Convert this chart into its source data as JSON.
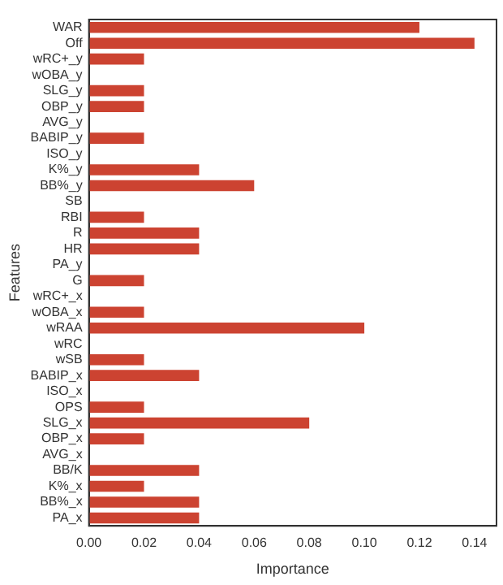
{
  "chart_data": {
    "type": "bar",
    "orientation": "horizontal",
    "xlabel": "Importance",
    "ylabel": "Features",
    "categories": [
      "WAR",
      "Off",
      "wRC+_y",
      "wOBA_y",
      "SLG_y",
      "OBP_y",
      "AVG_y",
      "BABIP_y",
      "ISO_y",
      "K%_y",
      "BB%_y",
      "SB",
      "RBI",
      "R",
      "HR",
      "PA_y",
      "G",
      "wRC+_x",
      "wOBA_x",
      "wRAA",
      "wRC",
      "wSB",
      "BABIP_x",
      "ISO_x",
      "OPS",
      "SLG_x",
      "OBP_x",
      "AVG_x",
      "BB/K",
      "K%_x",
      "BB%_x",
      "PA_x"
    ],
    "values": [
      0.12,
      0.14,
      0.02,
      0,
      0.02,
      0.02,
      0,
      0.02,
      0,
      0.04,
      0.06,
      0,
      0.02,
      0.04,
      0.04,
      0,
      0.02,
      0,
      0.02,
      0.1,
      0,
      0.02,
      0.04,
      0,
      0.02,
      0.08,
      0.02,
      0,
      0.04,
      0.02,
      0.04,
      0.04
    ],
    "color": "#cc4331",
    "xlim": [
      0,
      0.148
    ],
    "xticks": [
      {
        "value": 0,
        "label": "0.00"
      },
      {
        "value": 0.02,
        "label": "0.02"
      },
      {
        "value": 0.04,
        "label": "0.04"
      },
      {
        "value": 0.06,
        "label": "0.06"
      },
      {
        "value": 0.08,
        "label": "0.08"
      },
      {
        "value": 0.1,
        "label": "0.10"
      },
      {
        "value": 0.12,
        "label": "0.12"
      },
      {
        "value": 0.14,
        "label": "0.14"
      }
    ],
    "grid": false,
    "legend": false
  }
}
